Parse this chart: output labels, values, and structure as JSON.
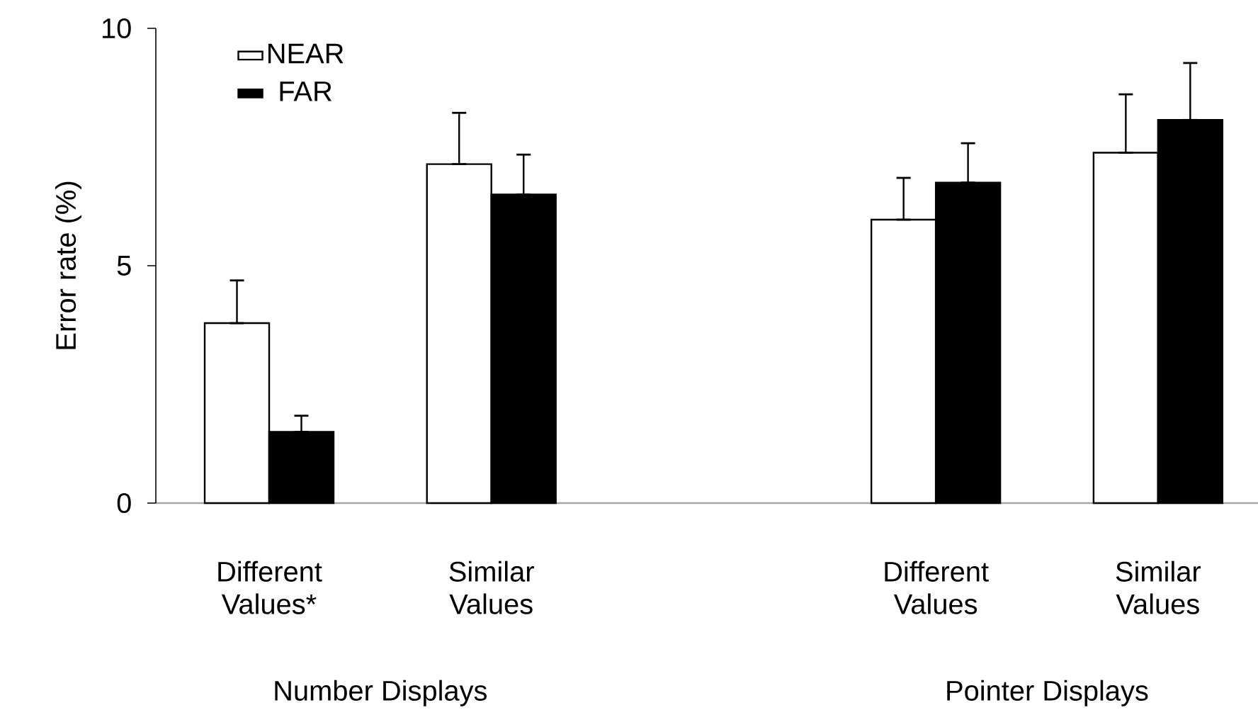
{
  "chart_data": {
    "type": "bar",
    "ylabel": "Error rate (%)",
    "categories": [
      "Different Values*",
      "Similar Values",
      null,
      "Different Values",
      "Similar Values"
    ],
    "series": [
      {
        "name": "NEAR",
        "color": "#ffffff",
        "values": [
          3.79,
          7.14,
          null,
          5.97,
          7.38
        ],
        "errors": [
          [
            3.79,
            4.69
          ],
          [
            7.14,
            8.22
          ],
          null,
          [
            5.97,
            6.85
          ],
          [
            7.38,
            8.61
          ]
        ]
      },
      {
        "name": "FAR",
        "color": "#000000",
        "values": [
          1.5,
          6.5,
          null,
          6.75,
          8.07
        ],
        "errors": [
          [
            1.5,
            1.84
          ],
          [
            6.5,
            7.34
          ],
          null,
          [
            6.75,
            7.58
          ],
          [
            8.07,
            9.27
          ]
        ]
      }
    ],
    "ylim": [
      0,
      10
    ],
    "yticks": [
      0,
      5,
      10
    ],
    "legend": "top left",
    "annotations": [
      "Number Displays",
      "Pointer Displays"
    ]
  }
}
